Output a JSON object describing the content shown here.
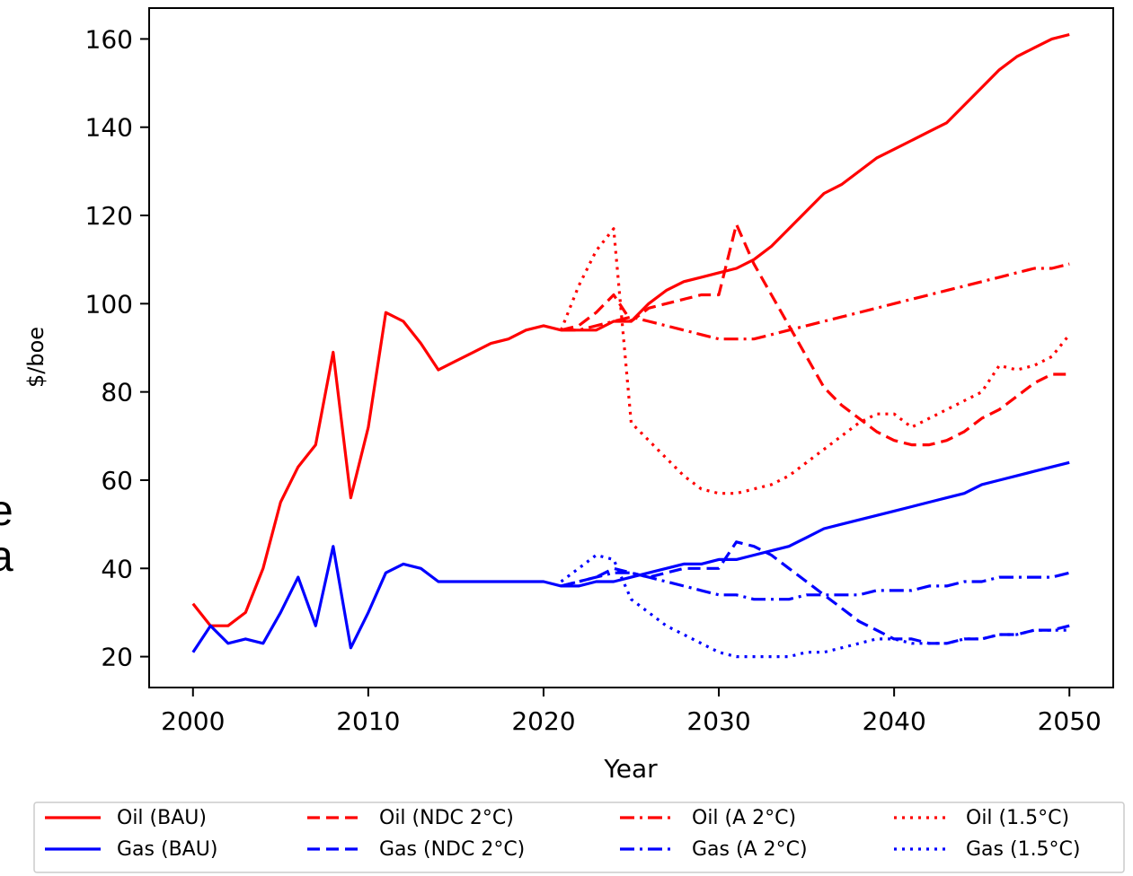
{
  "stray_text": {
    "top": "e",
    "bottom": "a"
  },
  "chart_data": {
    "type": "line",
    "title": "",
    "xlabel": "Year",
    "ylabel": "$/boe",
    "xlim": [
      1997.5,
      2052.5
    ],
    "ylim": [
      13,
      167
    ],
    "xticks": [
      2000,
      2010,
      2020,
      2030,
      2040,
      2050
    ],
    "yticks": [
      20,
      40,
      60,
      80,
      100,
      120,
      140,
      160
    ],
    "grid": false,
    "legend_placement": "bottom-outside",
    "colors": {
      "oil": "#ff0000",
      "gas": "#0000ff"
    },
    "series": [
      {
        "name": "Oil (BAU)",
        "color": "#ff0000",
        "style": "solid",
        "x": [
          2000,
          2001,
          2002,
          2003,
          2004,
          2005,
          2006,
          2007,
          2008,
          2009,
          2010,
          2011,
          2012,
          2013,
          2014,
          2015,
          2016,
          2017,
          2018,
          2019,
          2020,
          2021,
          2022,
          2023,
          2024,
          2025,
          2026,
          2027,
          2028,
          2029,
          2030,
          2031,
          2032,
          2033,
          2034,
          2035,
          2036,
          2037,
          2038,
          2039,
          2040,
          2041,
          2042,
          2043,
          2044,
          2045,
          2046,
          2047,
          2048,
          2049,
          2050
        ],
        "y": [
          32,
          27,
          27,
          30,
          40,
          55,
          63,
          68,
          89,
          56,
          72,
          98,
          96,
          91,
          85,
          87,
          89,
          91,
          92,
          94,
          95,
          94,
          94,
          94,
          96,
          96,
          100,
          103,
          105,
          106,
          107,
          108,
          110,
          113,
          117,
          121,
          125,
          127,
          130,
          133,
          135,
          137,
          139,
          141,
          145,
          149,
          153,
          156,
          158,
          160,
          161
        ]
      },
      {
        "name": "Oil (NDC 2°C)",
        "color": "#ff0000",
        "style": "dashed",
        "x": [
          2021,
          2022,
          2023,
          2024,
          2025,
          2026,
          2027,
          2028,
          2029,
          2030,
          2031,
          2032,
          2033,
          2034,
          2035,
          2036,
          2037,
          2038,
          2039,
          2040,
          2041,
          2042,
          2043,
          2044,
          2045,
          2046,
          2047,
          2048,
          2049,
          2050
        ],
        "y": [
          94,
          95,
          98,
          102,
          96,
          99,
          100,
          101,
          102,
          102,
          118,
          109,
          102,
          95,
          88,
          81,
          77,
          74,
          71,
          69,
          68,
          68,
          69,
          71,
          74,
          76,
          79,
          82,
          84,
          84
        ]
      },
      {
        "name": "Oil (A 2°C)",
        "color": "#ff0000",
        "style": "dashdot",
        "x": [
          2021,
          2022,
          2023,
          2024,
          2025,
          2026,
          2027,
          2028,
          2029,
          2030,
          2031,
          2032,
          2033,
          2034,
          2035,
          2036,
          2037,
          2038,
          2039,
          2040,
          2041,
          2042,
          2043,
          2044,
          2045,
          2046,
          2047,
          2048,
          2049,
          2050
        ],
        "y": [
          94,
          94,
          95,
          96,
          97,
          96,
          95,
          94,
          93,
          92,
          92,
          92,
          93,
          94,
          95,
          96,
          97,
          98,
          99,
          100,
          101,
          102,
          103,
          104,
          105,
          106,
          107,
          108,
          108,
          109
        ]
      },
      {
        "name": "Oil (1.5°C)",
        "color": "#ff0000",
        "style": "dotted",
        "x": [
          2021,
          2022,
          2023,
          2024,
          2025,
          2026,
          2027,
          2028,
          2029,
          2030,
          2031,
          2032,
          2033,
          2034,
          2035,
          2036,
          2037,
          2038,
          2039,
          2040,
          2041,
          2042,
          2043,
          2044,
          2045,
          2046,
          2047,
          2048,
          2049,
          2050
        ],
        "y": [
          94,
          104,
          112,
          117,
          73,
          69,
          65,
          61,
          58,
          57,
          57,
          58,
          59,
          61,
          64,
          67,
          70,
          73,
          75,
          75,
          72,
          74,
          76,
          78,
          80,
          86,
          85,
          86,
          88,
          93
        ]
      },
      {
        "name": "Gas (BAU)",
        "color": "#0000ff",
        "style": "solid",
        "x": [
          2000,
          2001,
          2002,
          2003,
          2004,
          2005,
          2006,
          2007,
          2008,
          2009,
          2010,
          2011,
          2012,
          2013,
          2014,
          2015,
          2016,
          2017,
          2018,
          2019,
          2020,
          2021,
          2022,
          2023,
          2024,
          2025,
          2026,
          2027,
          2028,
          2029,
          2030,
          2031,
          2032,
          2033,
          2034,
          2035,
          2036,
          2037,
          2038,
          2039,
          2040,
          2041,
          2042,
          2043,
          2044,
          2045,
          2046,
          2047,
          2048,
          2049,
          2050
        ],
        "y": [
          21,
          27,
          23,
          24,
          23,
          30,
          38,
          27,
          45,
          22,
          30,
          39,
          41,
          40,
          37,
          37,
          37,
          37,
          37,
          37,
          37,
          36,
          36,
          37,
          37,
          38,
          39,
          40,
          41,
          41,
          42,
          42,
          43,
          44,
          45,
          47,
          49,
          50,
          51,
          52,
          53,
          54,
          55,
          56,
          57,
          59,
          60,
          61,
          62,
          63,
          64
        ]
      },
      {
        "name": "Gas (NDC 2°C)",
        "color": "#0000ff",
        "style": "dashed",
        "x": [
          2021,
          2022,
          2023,
          2024,
          2025,
          2026,
          2027,
          2028,
          2029,
          2030,
          2031,
          2032,
          2033,
          2034,
          2035,
          2036,
          2037,
          2038,
          2039,
          2040,
          2041,
          2042,
          2043,
          2044,
          2045,
          2046,
          2047,
          2048,
          2049,
          2050
        ],
        "y": [
          36,
          37,
          38,
          40,
          39,
          38,
          39,
          40,
          40,
          40,
          46,
          45,
          43,
          40,
          37,
          34,
          31,
          28,
          26,
          24,
          24,
          23,
          23,
          24,
          24,
          25,
          25,
          26,
          26,
          27
        ]
      },
      {
        "name": "Gas (A 2°C)",
        "color": "#0000ff",
        "style": "dashdot",
        "x": [
          2021,
          2022,
          2023,
          2024,
          2025,
          2026,
          2027,
          2028,
          2029,
          2030,
          2031,
          2032,
          2033,
          2034,
          2035,
          2036,
          2037,
          2038,
          2039,
          2040,
          2041,
          2042,
          2043,
          2044,
          2045,
          2046,
          2047,
          2048,
          2049,
          2050
        ],
        "y": [
          36,
          37,
          38,
          39,
          39,
          38,
          37,
          36,
          35,
          34,
          34,
          33,
          33,
          33,
          34,
          34,
          34,
          34,
          35,
          35,
          35,
          36,
          36,
          37,
          37,
          38,
          38,
          38,
          38,
          39
        ]
      },
      {
        "name": "Gas (1.5°C)",
        "color": "#0000ff",
        "style": "dotted",
        "x": [
          2021,
          2022,
          2023,
          2024,
          2025,
          2026,
          2027,
          2028,
          2029,
          2030,
          2031,
          2032,
          2033,
          2034,
          2035,
          2036,
          2037,
          2038,
          2039,
          2040,
          2041,
          2042,
          2043,
          2044,
          2045,
          2046,
          2047,
          2048,
          2049,
          2050
        ],
        "y": [
          37,
          40,
          43,
          42,
          33,
          30,
          27,
          25,
          23,
          21,
          20,
          20,
          20,
          20,
          21,
          21,
          22,
          23,
          24,
          24,
          23,
          23,
          23,
          24,
          24,
          25,
          25,
          26,
          26,
          26
        ]
      }
    ]
  }
}
